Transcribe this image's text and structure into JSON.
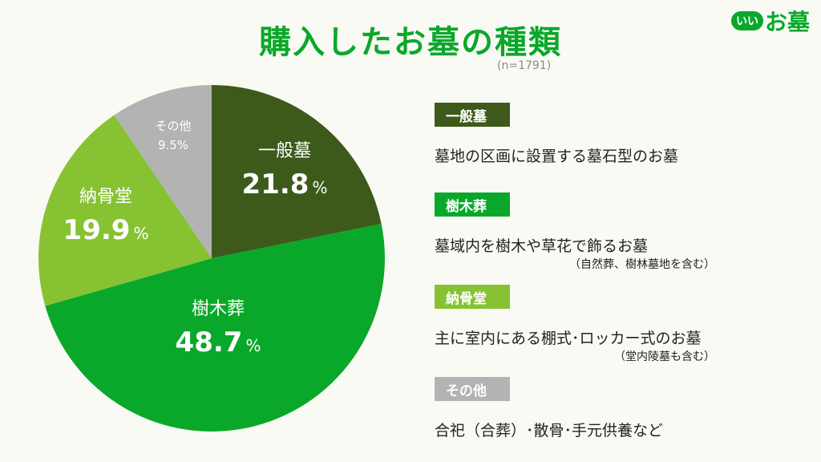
{
  "title": "購入したお墓の種類",
  "note": "(n=1791)",
  "logo": {
    "badge": "いい",
    "text": "お墓"
  },
  "chart_data": {
    "type": "pie",
    "title": "購入したお墓の種類",
    "slices": [
      {
        "label": "一般墓",
        "value": 21.8,
        "color": "#3d5a1b"
      },
      {
        "label": "樹木葬",
        "value": 48.7,
        "color": "#0aa82a"
      },
      {
        "label": "納骨堂",
        "value": 19.9,
        "color": "#86c232"
      },
      {
        "label": "その他",
        "value": 9.5,
        "color": "#b3b3b3"
      }
    ],
    "value_labels": [
      "21.8",
      "48.7",
      "19.9",
      "9.5%"
    ],
    "percent_unit": "%"
  },
  "legend": [
    {
      "tag": "一般墓",
      "color": "#3d5a1b",
      "desc": "墓地の区画に設置する墓石型のお墓",
      "sub": ""
    },
    {
      "tag": "樹木葬",
      "color": "#0aa82a",
      "desc": "墓域内を樹木や草花で飾るお墓",
      "sub": "（自然葬、樹林墓地を含む）"
    },
    {
      "tag": "納骨堂",
      "color": "#86c232",
      "desc": "主に室内にある棚式･ロッカー式のお墓",
      "sub": "（堂内陵墓も含む）"
    },
    {
      "tag": "その他",
      "color": "#b3b3b3",
      "desc": "合祀（合葬）･散骨･手元供養など",
      "sub": ""
    }
  ]
}
